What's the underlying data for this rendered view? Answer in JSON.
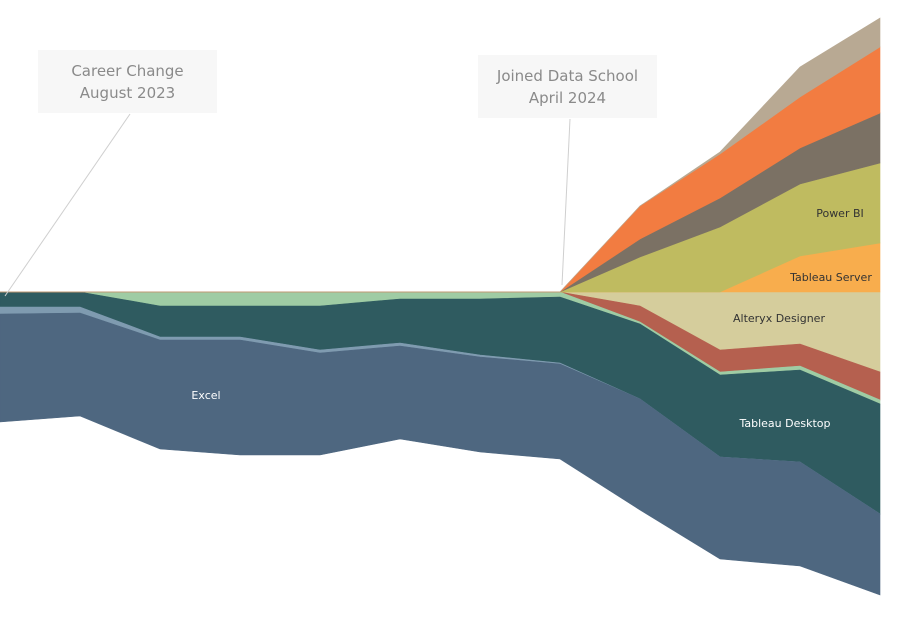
{
  "chart_data": {
    "type": "area",
    "subtype": "diverging-stacked-area",
    "title": "",
    "xlabel": "",
    "ylabel": "",
    "grid": false,
    "legend": "none (inline labels)",
    "x": [
      1,
      2,
      3,
      4,
      5,
      6,
      7,
      8,
      9,
      10,
      11,
      12
    ],
    "series_above": [
      {
        "name": "Tableau Server",
        "color": "#f8ad4d",
        "label_color": "#333333",
        "values": [
          0,
          0,
          0,
          0,
          0,
          0,
          0,
          0,
          0,
          0,
          7.2,
          9.8
        ]
      },
      {
        "name": "Power BI",
        "color": "#bfbb60",
        "label_color": "#333333",
        "values": [
          0,
          0,
          0,
          0,
          0,
          0,
          0,
          0,
          7,
          13,
          14.4,
          16
        ]
      },
      {
        "color": "#7b7164",
        "values": [
          0,
          0,
          0,
          0,
          0,
          0,
          0,
          0,
          3.6,
          5.8,
          7.2,
          10
        ]
      },
      {
        "color": "#f27c41",
        "values": [
          0,
          0,
          0,
          0,
          0,
          0,
          0,
          0,
          6.6,
          8.8,
          10.2,
          13.2
        ]
      },
      {
        "color": "#b8a993",
        "values": [
          0,
          0,
          0,
          0,
          0,
          0,
          0,
          0,
          0,
          0.4,
          6,
          5.8
        ]
      }
    ],
    "series_below": [
      {
        "name": "Alteryx Designer",
        "color": "#d5cd9c",
        "label_color": "#333333",
        "values": [
          0,
          0,
          0,
          0,
          0,
          0,
          0,
          0,
          2.8,
          11.6,
          10.4,
          16
        ]
      },
      {
        "color": "#b5604f",
        "values": [
          0,
          0,
          0,
          0,
          0,
          0,
          0,
          0,
          3.2,
          4.4,
          4.4,
          5.6
        ]
      },
      {
        "color": "#9fcca4",
        "values": [
          0,
          0,
          2.8,
          2.8,
          2.8,
          1.4,
          1.4,
          1,
          0.4,
          0.6,
          0.8,
          0.8
        ]
      },
      {
        "name": "Tableau Desktop",
        "color": "#2f5b60",
        "label_color": "#ffffff",
        "values": [
          3,
          3,
          6.2,
          6.2,
          8.8,
          8.8,
          11.2,
          13.2,
          15,
          16.4,
          18.4,
          22
        ]
      },
      {
        "color": "#7f9bb0",
        "values": [
          1.4,
          1.2,
          0.6,
          0.6,
          0.6,
          0.6,
          0.4,
          0.2,
          0,
          0,
          0,
          0
        ]
      },
      {
        "name": "Excel",
        "color": "#4e6780",
        "label_color": "#ffffff",
        "values": [
          21.6,
          20.6,
          21.8,
          23,
          20.4,
          18.6,
          19,
          19,
          22.2,
          20.4,
          20.8,
          16.2
        ]
      }
    ],
    "annotations": [
      {
        "line1": "Career Change",
        "line2": "August 2023",
        "x_index": 0
      },
      {
        "line1": "Joined Data School",
        "line2": "April 2024",
        "x_index": 7
      }
    ]
  }
}
